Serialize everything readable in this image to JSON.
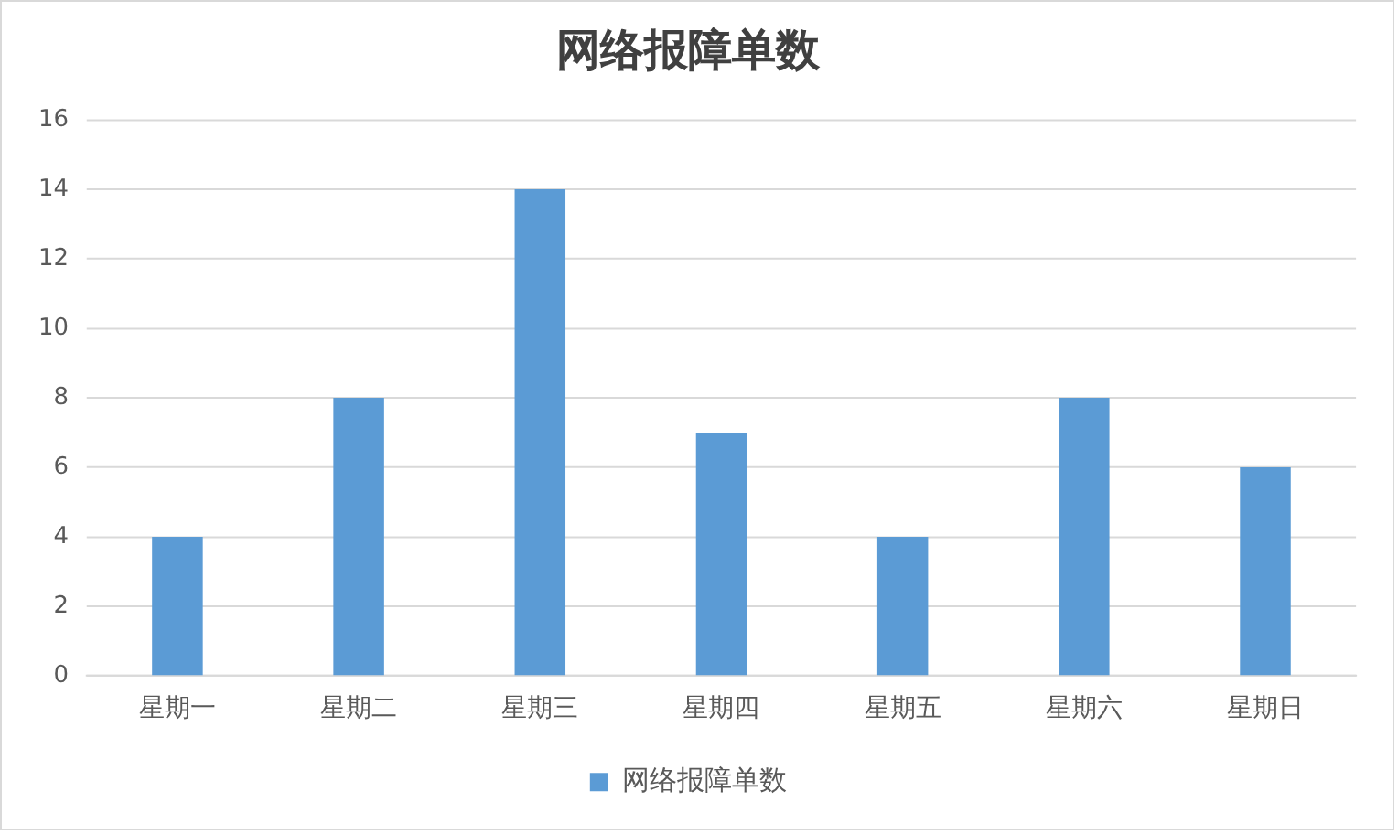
{
  "chart_data": {
    "type": "bar",
    "title": "网络报障单数",
    "categories": [
      "星期一",
      "星期二",
      "星期三",
      "星期四",
      "星期五",
      "星期六",
      "星期日"
    ],
    "series": [
      {
        "name": "网络报障单数",
        "color": "#5b9bd5",
        "values": [
          4,
          8,
          14,
          7,
          4,
          8,
          6
        ]
      }
    ],
    "ylim": [
      0,
      16
    ],
    "yticks": [
      0,
      2,
      4,
      6,
      8,
      10,
      12,
      14,
      16
    ],
    "grid": "y",
    "legend": "bottom"
  }
}
